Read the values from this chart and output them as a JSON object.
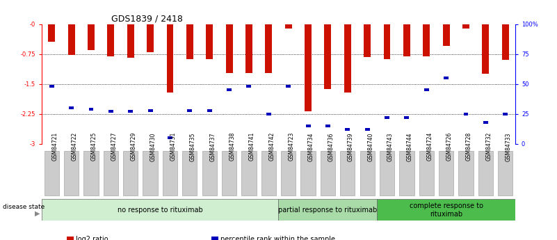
{
  "title": "GDS1839 / 2418",
  "samples": [
    "GSM84721",
    "GSM84722",
    "GSM84725",
    "GSM84727",
    "GSM84729",
    "GSM84730",
    "GSM84731",
    "GSM84735",
    "GSM84737",
    "GSM84738",
    "GSM84741",
    "GSM84742",
    "GSM84723",
    "GSM84734",
    "GSM84736",
    "GSM84739",
    "GSM84740",
    "GSM84743",
    "GSM84744",
    "GSM84724",
    "GSM84726",
    "GSM84728",
    "GSM84732",
    "GSM84733"
  ],
  "log2_ratio": [
    -0.45,
    -0.78,
    -0.65,
    -0.8,
    -0.85,
    -0.7,
    -1.72,
    -0.88,
    -0.88,
    -1.22,
    -1.22,
    -1.22,
    -0.12,
    -2.18,
    -1.62,
    -1.72,
    -0.82,
    -0.88,
    -0.8,
    -0.8,
    -0.55,
    -0.12,
    -1.25,
    -0.9
  ],
  "percentile_rank_pct": [
    48,
    30,
    29,
    27,
    27,
    28,
    5,
    28,
    28,
    45,
    48,
    25,
    48,
    15,
    15,
    12,
    12,
    22,
    22,
    45,
    55,
    25,
    18,
    25
  ],
  "groups": [
    {
      "label": "no response to rituximab",
      "start": 0,
      "end": 12,
      "color": "#d0eed0"
    },
    {
      "label": "partial response to rituximab",
      "start": 12,
      "end": 17,
      "color": "#a8dba8"
    },
    {
      "label": "complete response to\nrituximab",
      "start": 17,
      "end": 24,
      "color": "#4cbc4c"
    }
  ],
  "bar_color": "#cc1100",
  "percentile_color": "#0000bb",
  "ymin": -3.0,
  "ymax": 0.0,
  "yticks_left": [
    -3.0,
    -2.25,
    -1.5,
    -0.75,
    0.0
  ],
  "ytick_labels_left": [
    "-3",
    "-2.25",
    "-1.5",
    "-0.75",
    "-0"
  ],
  "right_yticks_pct": [
    0,
    25,
    50,
    75,
    100
  ],
  "right_ytick_labels": [
    "0",
    "25",
    "50",
    "75",
    "100%"
  ],
  "legend_items": [
    {
      "label": "log2 ratio",
      "color": "#cc1100"
    },
    {
      "label": "percentile rank within the sample",
      "color": "#0000bb"
    }
  ],
  "disease_state_label": "disease state",
  "bar_width": 0.35,
  "title_fontsize": 9,
  "tick_fontsize": 6,
  "group_fontsize": 7,
  "legend_fontsize": 7,
  "xtick_fontsize": 5.5
}
